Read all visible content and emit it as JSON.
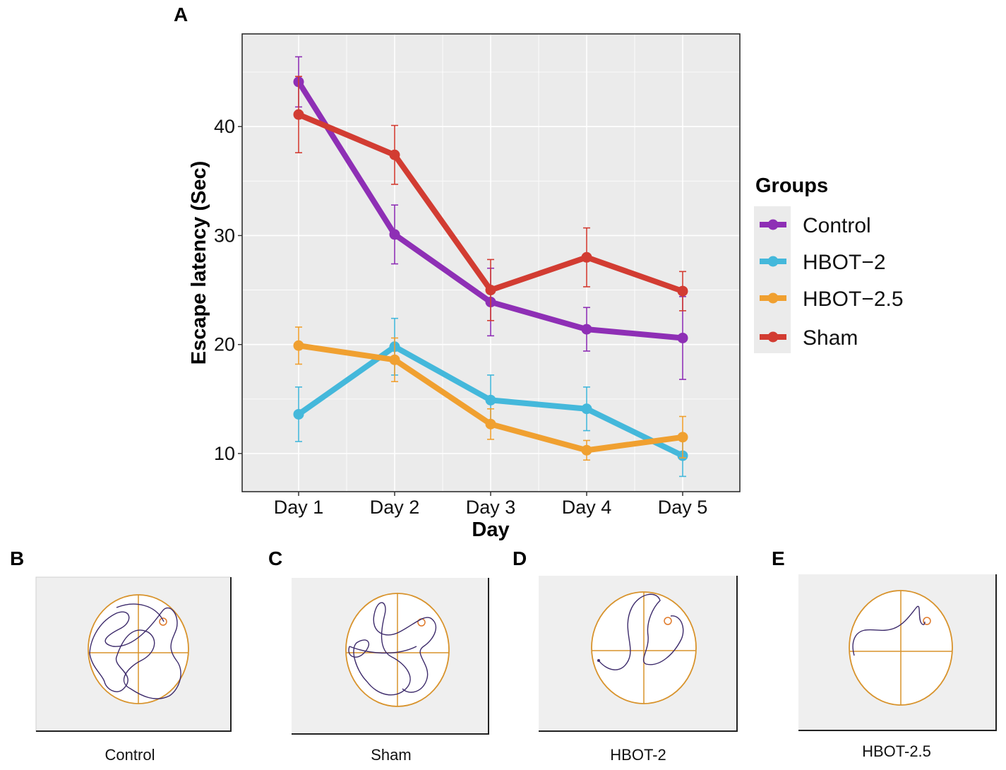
{
  "chart_data": [
    {
      "panel": "A",
      "type": "line",
      "title": "",
      "xlabel": "Day",
      "ylabel": "Escape latency (Sec)",
      "categories": [
        "Day 1",
        "Day 2",
        "Day 3",
        "Day 4",
        "Day 5"
      ],
      "ylim": [
        6.5,
        48.5
      ],
      "yticks": [
        10,
        20,
        30,
        40
      ],
      "grid": true,
      "legend_title": "Groups",
      "legend_position": "right",
      "series": [
        {
          "name": "Control",
          "color": "#8E2FB5",
          "values": [
            44.1,
            30.1,
            23.9,
            21.4,
            20.6
          ],
          "errors": [
            2.3,
            2.7,
            3.1,
            2.0,
            3.8
          ]
        },
        {
          "name": "HBOT−2",
          "color": "#44B8DB",
          "values": [
            13.6,
            19.8,
            14.9,
            14.1,
            9.8
          ],
          "errors": [
            2.5,
            2.6,
            2.3,
            2.0,
            1.9
          ]
        },
        {
          "name": "HBOT−2.5",
          "color": "#F0A030",
          "values": [
            19.9,
            18.6,
            12.7,
            10.3,
            11.5
          ],
          "errors": [
            1.7,
            2.0,
            1.4,
            0.9,
            1.9
          ]
        },
        {
          "name": "Sham",
          "color": "#D23C32",
          "values": [
            41.1,
            37.4,
            25.0,
            28.0,
            24.9
          ],
          "errors": [
            3.5,
            2.7,
            2.8,
            2.7,
            1.8
          ]
        }
      ]
    }
  ],
  "panels": {
    "a": {
      "letter": "A"
    },
    "b": {
      "letter": "B",
      "caption": "Control"
    },
    "c": {
      "letter": "C",
      "caption": "Sham"
    },
    "d": {
      "letter": "D",
      "caption": "HBOT-2"
    },
    "e": {
      "letter": "E",
      "caption": "HBOT-2.5"
    }
  },
  "colors": {
    "panel_bg": "#EBEBEB",
    "grid": "#FFFFFF",
    "maze_ring": "#D8932C",
    "swim_path": "#3D2B6B",
    "target": "#E07A2A",
    "maze_bg": "#EFEFEF"
  }
}
